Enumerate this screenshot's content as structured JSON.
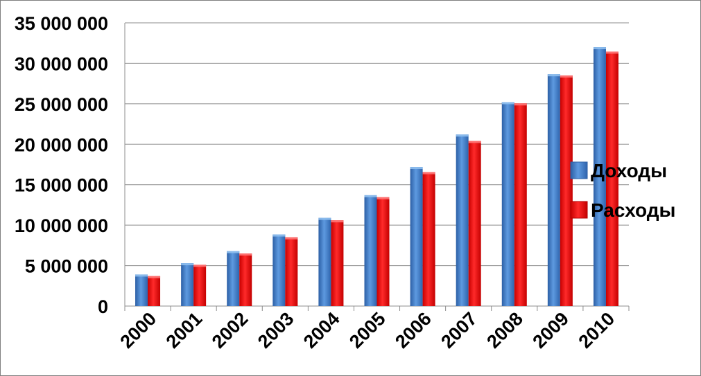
{
  "chart_data": {
    "type": "bar",
    "categories": [
      "2000",
      "2001",
      "2002",
      "2003",
      "2004",
      "2005",
      "2006",
      "2007",
      "2008",
      "2009",
      "2010"
    ],
    "series": [
      {
        "name": "Доходы",
        "color": "#3c78c8",
        "values": [
          3900000,
          5300000,
          6800000,
          8850000,
          10900000,
          13700000,
          17200000,
          21200000,
          25200000,
          28650000,
          32000000
        ]
      },
      {
        "name": "Расходы",
        "color": "#ee0000",
        "values": [
          3700000,
          5100000,
          6500000,
          8500000,
          10600000,
          13450000,
          16550000,
          20400000,
          25050000,
          28500000,
          31450000
        ]
      }
    ],
    "ylim": [
      0,
      35000000
    ],
    "yticks": [
      0,
      5000000,
      10000000,
      15000000,
      20000000,
      25000000,
      30000000,
      35000000
    ],
    "ytick_labels": [
      "0",
      "5 000 000",
      "10 000 000",
      "15 000 000",
      "20 000 000",
      "25 000 000",
      "30 000 000",
      "35 000 000"
    ],
    "grid": true,
    "legend_position": "right"
  }
}
